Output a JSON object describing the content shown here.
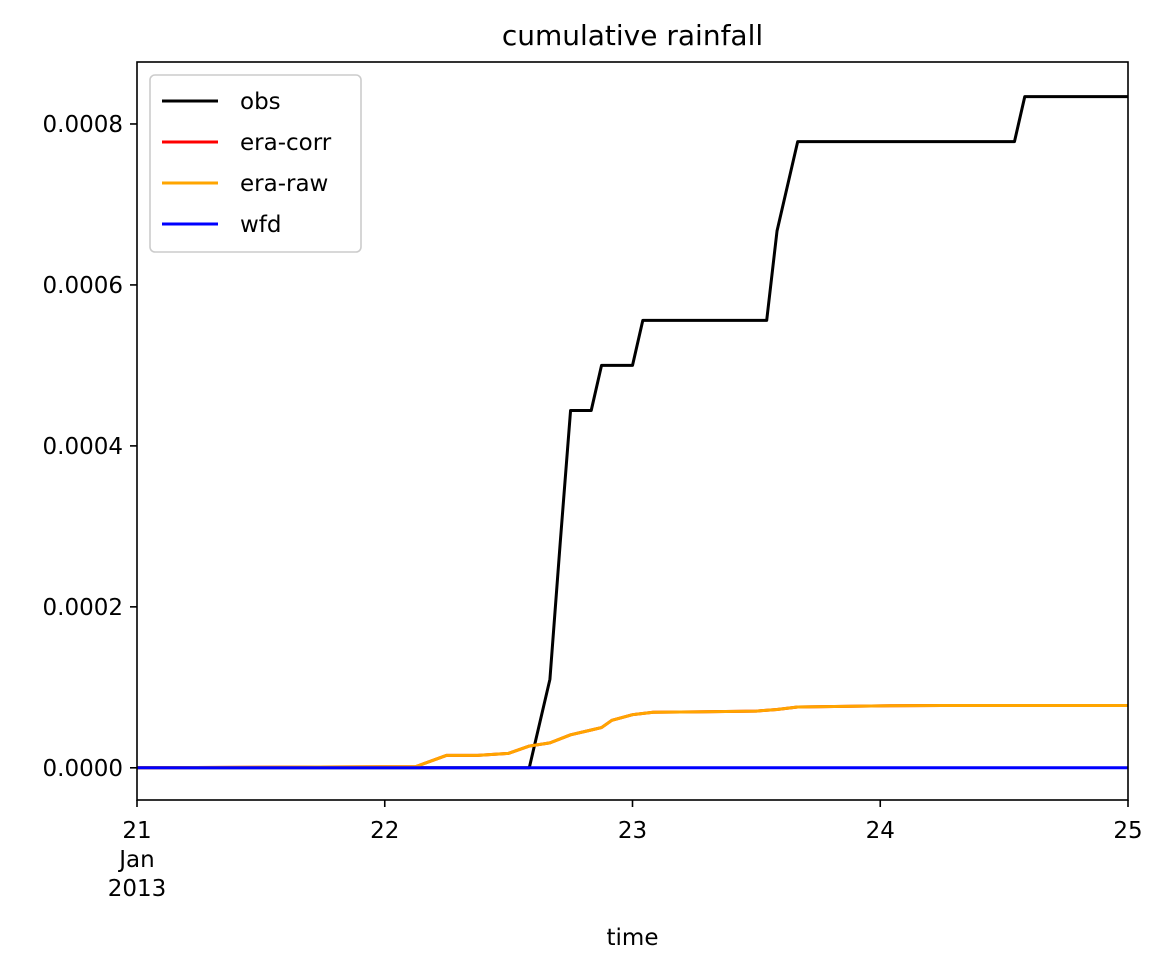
{
  "chart_data": {
    "type": "line",
    "title": "cumulative rainfall",
    "xlabel": "time",
    "ylabel": "",
    "x_axis": {
      "kind": "date",
      "range": [
        "2013-01-21",
        "2013-01-25"
      ],
      "ticks": [
        {
          "value": "2013-01-21",
          "lines": [
            "21",
            "Jan",
            "2013"
          ]
        },
        {
          "value": "2013-01-22",
          "lines": [
            "22"
          ]
        },
        {
          "value": "2013-01-23",
          "lines": [
            "23"
          ]
        },
        {
          "value": "2013-01-24",
          "lines": [
            "24"
          ]
        },
        {
          "value": "2013-01-25",
          "lines": [
            "25"
          ]
        }
      ]
    },
    "ylim": [
      -4e-05,
      0.000877
    ],
    "yticks": [
      {
        "value": 0,
        "label": "0.0000"
      },
      {
        "value": 0.0002,
        "label": "0.0002"
      },
      {
        "value": 0.0004,
        "label": "0.0004"
      },
      {
        "value": 0.0006,
        "label": "0.0006"
      },
      {
        "value": 0.0008,
        "label": "0.0008"
      }
    ],
    "grid": false,
    "legend": {
      "placement": "top-left"
    },
    "series": [
      {
        "name": "obs",
        "color": "#000000",
        "x": [
          "2013-01-21 00:00",
          "2013-01-22 14:00",
          "2013-01-22 16:00",
          "2013-01-22 17:00",
          "2013-01-22 18:00",
          "2013-01-22 19:00",
          "2013-01-22 20:00",
          "2013-01-22 21:00",
          "2013-01-23 00:00",
          "2013-01-23 01:00",
          "2013-01-23 13:00",
          "2013-01-23 14:00",
          "2013-01-23 16:00",
          "2013-01-24 13:00",
          "2013-01-24 14:00",
          "2013-01-25 00:00"
        ],
        "y": [
          0,
          0,
          0.00011,
          0.00028,
          0.000444,
          0.000444,
          0.000444,
          0.0005,
          0.0005,
          0.000556,
          0.000556,
          0.000667,
          0.000778,
          0.000778,
          0.000834,
          0.000834
        ]
      },
      {
        "name": "era-corr",
        "color": "#ff0000",
        "x": [
          "2013-01-21 00:00",
          "2013-01-22 03:00",
          "2013-01-22 06:00",
          "2013-01-22 09:00",
          "2013-01-22 12:00",
          "2013-01-22 14:00",
          "2013-01-22 16:00",
          "2013-01-22 18:00",
          "2013-01-22 20:00",
          "2013-01-22 21:00",
          "2013-01-22 22:00",
          "2013-01-23 00:00",
          "2013-01-23 02:00",
          "2013-01-23 06:00",
          "2013-01-23 12:00",
          "2013-01-23 14:00",
          "2013-01-23 16:00",
          "2013-01-24 00:00",
          "2013-01-24 06:00",
          "2013-01-25 00:00"
        ],
        "y": [
          0,
          1.5e-06,
          1.55e-05,
          1.55e-05,
          1.8e-05,
          2.7e-05,
          3.1e-05,
          4.1e-05,
          4.7e-05,
          5e-05,
          5.9e-05,
          6.6e-05,
          6.9e-05,
          6.95e-05,
          7.05e-05,
          7.25e-05,
          7.55e-05,
          7.7e-05,
          7.75e-05,
          7.75e-05
        ]
      },
      {
        "name": "era-raw",
        "color": "#ffa500",
        "x": [
          "2013-01-21 00:00",
          "2013-01-22 03:00",
          "2013-01-22 06:00",
          "2013-01-22 09:00",
          "2013-01-22 12:00",
          "2013-01-22 14:00",
          "2013-01-22 16:00",
          "2013-01-22 18:00",
          "2013-01-22 20:00",
          "2013-01-22 21:00",
          "2013-01-22 22:00",
          "2013-01-23 00:00",
          "2013-01-23 02:00",
          "2013-01-23 06:00",
          "2013-01-23 12:00",
          "2013-01-23 14:00",
          "2013-01-23 16:00",
          "2013-01-24 00:00",
          "2013-01-24 06:00",
          "2013-01-25 00:00"
        ],
        "y": [
          0,
          1.5e-06,
          1.55e-05,
          1.55e-05,
          1.8e-05,
          2.7e-05,
          3.1e-05,
          4.1e-05,
          4.7e-05,
          5e-05,
          5.9e-05,
          6.6e-05,
          6.9e-05,
          6.95e-05,
          7.05e-05,
          7.25e-05,
          7.55e-05,
          7.7e-05,
          7.75e-05,
          7.75e-05
        ]
      },
      {
        "name": "wfd",
        "color": "#0000ff",
        "x": [
          "2013-01-21 00:00",
          "2013-01-25 00:00"
        ],
        "y": [
          0,
          0
        ]
      }
    ]
  }
}
